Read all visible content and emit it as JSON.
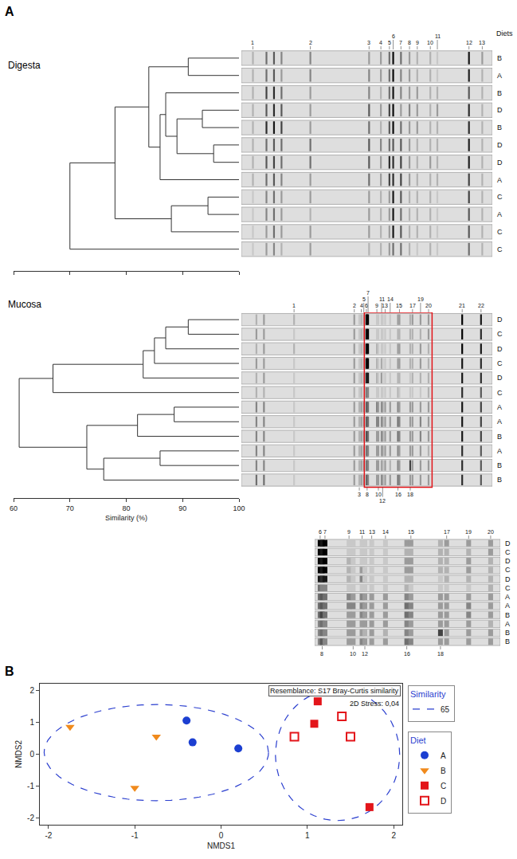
{
  "panels": [
    "A",
    "B"
  ],
  "chart_data": [
    {
      "type": "dendrogram",
      "title": "Digesta",
      "leaves": [
        "B",
        "A",
        "B",
        "D",
        "B",
        "D",
        "D",
        "A",
        "C",
        "A",
        "C",
        "C"
      ],
      "merges": [
        {
          "join": [
            0,
            1
          ],
          "similarity": 91
        },
        {
          "join": [
            3,
            4
          ],
          "similarity": 93.5
        },
        {
          "join": [
            5,
            6
          ],
          "similarity": 95.5
        },
        {
          "join": [
            13,
            14
          ],
          "similarity": 89
        },
        {
          "join": [
            2,
            15
          ],
          "similarity": 87
        },
        {
          "join": [
            16,
            7
          ],
          "similarity": 86
        },
        {
          "join": [
            12,
            17
          ],
          "similarity": 84
        },
        {
          "join": [
            8,
            9
          ],
          "similarity": 94.5
        },
        {
          "join": [
            19,
            10
          ],
          "similarity": 88
        },
        {
          "join": [
            18,
            20
          ],
          "similarity": 78
        },
        {
          "join": [
            21,
            11
          ],
          "similarity": 70
        }
      ],
      "xlim": [
        60,
        100
      ],
      "xticks": [
        60,
        70,
        80,
        90,
        100
      ],
      "tick_labels": false,
      "gel": {
        "header": "Diets",
        "bands": [
          {
            "label": "1",
            "position": 0.046,
            "side": "top"
          },
          {
            "label": null,
            "position": 0.1
          },
          {
            "label": null,
            "position": 0.13
          },
          {
            "label": null,
            "position": 0.16
          },
          {
            "label": "2",
            "position": 0.275,
            "side": "top"
          },
          {
            "label": "3",
            "position": 0.509,
            "side": "top"
          },
          {
            "label": "4",
            "position": 0.556,
            "side": "top"
          },
          {
            "label": "5",
            "position": 0.59,
            "side": "top"
          },
          {
            "label": "6",
            "position": 0.605,
            "side": "top"
          },
          {
            "label": "7",
            "position": 0.636,
            "side": "top"
          },
          {
            "label": "8",
            "position": 0.67,
            "side": "top"
          },
          {
            "label": "9",
            "position": 0.701,
            "side": "top"
          },
          {
            "label": "10",
            "position": 0.753,
            "side": "top"
          },
          {
            "label": "11",
            "position": 0.781,
            "side": "top"
          },
          {
            "label": "12",
            "position": 0.907,
            "side": "top"
          },
          {
            "label": "13",
            "position": 0.96,
            "side": "top"
          }
        ],
        "lanes": [
          [
            0.2,
            0.5,
            0.6,
            0.4,
            0.4,
            0.3,
            0.3,
            0.5,
            0.95,
            0.5,
            0.3,
            0.2,
            0.2,
            0.1,
            0.9,
            0.3
          ],
          [
            0.2,
            0.5,
            0.6,
            0.3,
            0.4,
            0.4,
            0.3,
            0.5,
            0.95,
            0.4,
            0.3,
            0.2,
            0.2,
            0.1,
            0.85,
            0.2
          ],
          [
            0.2,
            0.7,
            0.8,
            0.5,
            0.3,
            0.4,
            0.2,
            0.5,
            0.9,
            0.4,
            0.3,
            0.3,
            0.2,
            0.2,
            0.6,
            0.2
          ],
          [
            0.2,
            0.6,
            0.8,
            0.6,
            0.3,
            0.6,
            0.3,
            0.7,
            0.95,
            0.3,
            0.4,
            0.3,
            0.2,
            0.3,
            0.8,
            0.2
          ],
          [
            0.2,
            0.8,
            0.9,
            0.7,
            0.3,
            0.5,
            0.2,
            0.6,
            0.95,
            0.5,
            0.3,
            0.3,
            0.2,
            0.2,
            0.8,
            0.2
          ],
          [
            0.2,
            0.5,
            0.6,
            0.5,
            0.5,
            0.6,
            0.4,
            0.5,
            0.6,
            0.6,
            0.3,
            0.2,
            0.2,
            0.2,
            0.85,
            0.2
          ],
          [
            0.2,
            0.6,
            0.7,
            0.5,
            0.5,
            0.6,
            0.3,
            0.8,
            0.8,
            0.7,
            0.3,
            0.2,
            0.3,
            0.2,
            0.85,
            0.2
          ],
          [
            0.2,
            0.5,
            0.6,
            0.4,
            0.3,
            0.5,
            0.3,
            0.7,
            0.8,
            0.7,
            0.3,
            0.2,
            0.2,
            0.2,
            0.7,
            0.2
          ],
          [
            0.1,
            0.4,
            0.5,
            0.3,
            0.3,
            0.3,
            0.2,
            0.3,
            0.9,
            0.6,
            0.2,
            0.2,
            0.2,
            0.1,
            0.7,
            0.2
          ],
          [
            0.1,
            0.4,
            0.5,
            0.3,
            0.2,
            0.3,
            0.2,
            0.3,
            0.9,
            0.5,
            0.2,
            0.2,
            0.2,
            0.1,
            0.6,
            0.2
          ],
          [
            0.1,
            0.3,
            0.5,
            0.3,
            0.3,
            0.3,
            0.2,
            0.3,
            0.9,
            0.6,
            0.2,
            0.2,
            0.2,
            0.1,
            0.6,
            0.2
          ],
          [
            0.1,
            0.3,
            0.4,
            0.2,
            0.3,
            0.2,
            0.2,
            0.3,
            0.5,
            0.5,
            0.2,
            0.1,
            0.2,
            0.1,
            0.5,
            0.2
          ]
        ]
      }
    },
    {
      "type": "dendrogram",
      "title": "Mucosa",
      "x_label": "Similarity (%)",
      "leaves": [
        "D",
        "C",
        "D",
        "C",
        "D",
        "C",
        "A",
        "A",
        "B",
        "A",
        "B",
        "B"
      ],
      "merges": [
        {
          "join": [
            0,
            1
          ],
          "similarity": 91
        },
        {
          "join": [
            12,
            2
          ],
          "similarity": 87
        },
        {
          "join": [
            13,
            3
          ],
          "similarity": 85
        },
        {
          "join": [
            14,
            4
          ],
          "similarity": 83
        },
        {
          "join": [
            15,
            5
          ],
          "similarity": 67
        },
        {
          "join": [
            6,
            7
          ],
          "similarity": 88.5
        },
        {
          "join": [
            17,
            8
          ],
          "similarity": 82
        },
        {
          "join": [
            9,
            10
          ],
          "similarity": 86
        },
        {
          "join": [
            19,
            11
          ],
          "similarity": 76
        },
        {
          "join": [
            18,
            20
          ],
          "similarity": 73
        },
        {
          "join": [
            16,
            21
          ],
          "similarity": 61
        }
      ],
      "xlim": [
        60,
        100
      ],
      "xticks": [
        60,
        70,
        80,
        90,
        100
      ],
      "gel": {
        "bands": [
          {
            "label": null,
            "position": 0.06
          },
          {
            "label": null,
            "position": 0.09
          },
          {
            "label": "1",
            "position": 0.21,
            "side": "top"
          },
          {
            "label": "2",
            "position": 0.45,
            "side": "top"
          },
          {
            "label": "3",
            "position": 0.47,
            "side": "bottom"
          },
          {
            "label": "4",
            "position": 0.478,
            "side": "top"
          },
          {
            "label": "5",
            "position": 0.488,
            "side": "top"
          },
          {
            "label": "6",
            "position": 0.498,
            "side": "top"
          },
          {
            "label": "8",
            "position": 0.501,
            "side": "bottom"
          },
          {
            "label": "7",
            "position": 0.505,
            "side": "top"
          },
          {
            "label": "9",
            "position": 0.54,
            "side": "top"
          },
          {
            "label": "10",
            "position": 0.546,
            "side": "bottom"
          },
          {
            "label": "11",
            "position": 0.559,
            "side": "top"
          },
          {
            "label": "12",
            "position": 0.563,
            "side": "bottom"
          },
          {
            "label": "13",
            "position": 0.573,
            "side": "top"
          },
          {
            "label": "14",
            "position": 0.593,
            "side": "top"
          },
          {
            "label": "16",
            "position": 0.624,
            "side": "bottom"
          },
          {
            "label": "15",
            "position": 0.63,
            "side": "top"
          },
          {
            "label": "18",
            "position": 0.673,
            "side": "bottom"
          },
          {
            "label": "17",
            "position": 0.682,
            "side": "top"
          },
          {
            "label": "19",
            "position": 0.714,
            "side": "top"
          },
          {
            "label": "20",
            "position": 0.746,
            "side": "top"
          },
          {
            "label": "21",
            "position": 0.88,
            "side": "top"
          },
          {
            "label": "22",
            "position": 0.955,
            "side": "top"
          }
        ],
        "lanes": [
          [
            0.2,
            0.3,
            0.2,
            0.3,
            0.1,
            0.2,
            0.2,
            1.0,
            0.9,
            1.0,
            0.1,
            0.1,
            0.1,
            0.1,
            0.1,
            0.1,
            0.3,
            0.3,
            0.2,
            0.3,
            0.3,
            0.3,
            1.0,
            0.9
          ],
          [
            0.3,
            0.3,
            0.1,
            0.3,
            0.1,
            0.2,
            0.2,
            1.0,
            0.9,
            1.0,
            0.1,
            0.1,
            0.1,
            0.1,
            0.1,
            0.1,
            0.2,
            0.2,
            0.2,
            0.2,
            0.2,
            0.3,
            1.0,
            0.8
          ],
          [
            0.2,
            0.3,
            0.2,
            0.3,
            0.1,
            0.2,
            0.2,
            1.0,
            0.9,
            1.0,
            0.2,
            0.1,
            0.1,
            0.1,
            0.1,
            0.1,
            0.3,
            0.3,
            0.2,
            0.2,
            0.3,
            0.2,
            1.0,
            0.9
          ],
          [
            0.3,
            0.3,
            0.1,
            0.3,
            0.1,
            0.2,
            0.2,
            1.0,
            0.9,
            1.0,
            0.2,
            0.1,
            0.3,
            0.1,
            0.1,
            0.1,
            0.3,
            0.3,
            0.2,
            0.2,
            0.3,
            0.2,
            0.9,
            0.8
          ],
          [
            0.2,
            0.3,
            0.1,
            0.3,
            0.1,
            0.2,
            0.2,
            0.9,
            0.8,
            0.9,
            0.2,
            0.1,
            0.4,
            0.1,
            0.1,
            0.1,
            0.2,
            0.2,
            0.1,
            0.2,
            0.2,
            0.2,
            0.9,
            0.8
          ],
          [
            0.2,
            0.2,
            0.1,
            0.2,
            0.1,
            0.2,
            0.1,
            0.5,
            0.4,
            0.4,
            0.1,
            0.1,
            0.1,
            0.1,
            0.1,
            0.1,
            0.2,
            0.1,
            0.1,
            0.1,
            0.1,
            0.2,
            0.8,
            0.6
          ],
          [
            0.4,
            0.4,
            0.1,
            0.3,
            0.2,
            0.3,
            0.3,
            0.5,
            0.6,
            0.5,
            0.4,
            0.3,
            0.4,
            0.3,
            0.3,
            0.3,
            0.4,
            0.3,
            0.3,
            0.3,
            0.3,
            0.3,
            0.9,
            0.7
          ],
          [
            0.4,
            0.4,
            0.1,
            0.3,
            0.2,
            0.3,
            0.3,
            0.5,
            0.6,
            0.5,
            0.4,
            0.4,
            0.4,
            0.3,
            0.3,
            0.3,
            0.5,
            0.4,
            0.3,
            0.3,
            0.4,
            0.3,
            0.9,
            0.7
          ],
          [
            0.4,
            0.4,
            0.1,
            0.3,
            0.2,
            0.3,
            0.3,
            0.5,
            0.7,
            0.5,
            0.3,
            0.3,
            0.4,
            0.3,
            0.3,
            0.3,
            0.5,
            0.4,
            0.3,
            0.3,
            0.4,
            0.3,
            0.9,
            0.7
          ],
          [
            0.4,
            0.4,
            0.1,
            0.3,
            0.2,
            0.3,
            0.3,
            0.4,
            0.5,
            0.4,
            0.3,
            0.3,
            0.3,
            0.3,
            0.3,
            0.3,
            0.4,
            0.3,
            0.3,
            0.3,
            0.3,
            0.2,
            0.8,
            0.6
          ],
          [
            0.4,
            0.4,
            0.1,
            0.3,
            0.2,
            0.3,
            0.3,
            0.4,
            0.5,
            0.4,
            0.3,
            0.3,
            0.3,
            0.2,
            0.3,
            0.2,
            0.4,
            0.3,
            0.7,
            0.3,
            0.3,
            0.3,
            0.8,
            0.6
          ],
          [
            0.5,
            0.5,
            0.1,
            0.3,
            0.2,
            0.3,
            0.3,
            0.4,
            0.6,
            0.4,
            0.3,
            0.3,
            0.4,
            0.3,
            0.3,
            0.3,
            0.5,
            0.4,
            0.3,
            0.3,
            0.3,
            0.3,
            0.8,
            0.6
          ]
        ],
        "inset": {
          "xlim": [
            0.49,
            0.76
          ]
        }
      }
    },
    {
      "type": "scatter",
      "x_label": "NMDS1",
      "y_label": "NMDS2",
      "xlim": [
        -2.1,
        2.1
      ],
      "ylim": [
        -2.2,
        2.2
      ],
      "xticks": [
        -2,
        -1,
        0,
        1,
        2
      ],
      "yticks": [
        -2,
        -1,
        0,
        1,
        2
      ],
      "annotations": [
        "Resemblance: S17 Bray-Curtis similarity",
        "2D Stress: 0,04"
      ],
      "legend": "right",
      "legend_title": "Diet",
      "series": [
        {
          "name": "A",
          "color": "#1c3fd1",
          "marker": "circle",
          "x": [
            -0.4,
            -0.33,
            0.2
          ],
          "y": [
            1.05,
            0.37,
            0.18
          ]
        },
        {
          "name": "B",
          "color": "#f08a1c",
          "marker": "triangle-down",
          "x": [
            -1.75,
            -0.75,
            -1.0
          ],
          "y": [
            0.85,
            0.55,
            -1.05
          ]
        },
        {
          "name": "C",
          "color": "#e3151a",
          "marker": "square",
          "x": [
            1.12,
            1.08,
            1.72
          ],
          "y": [
            1.65,
            0.95,
            -1.65
          ]
        },
        {
          "name": "D",
          "color": "#e3151a",
          "marker": "square-open",
          "x": [
            1.4,
            0.85,
            1.5
          ],
          "y": [
            1.18,
            0.55,
            0.55
          ]
        }
      ],
      "similarity_groups": {
        "title": "Similarity",
        "name": "65",
        "color": "#2b3fcf",
        "line_style": "dash",
        "ellipses": [
          {
            "center": [
              -0.75,
              0.05
            ],
            "radii": [
              1.3,
              1.5
            ]
          },
          {
            "center": [
              1.35,
              -0.02
            ],
            "radii": [
              0.72,
              2.05
            ]
          }
        ]
      }
    }
  ]
}
